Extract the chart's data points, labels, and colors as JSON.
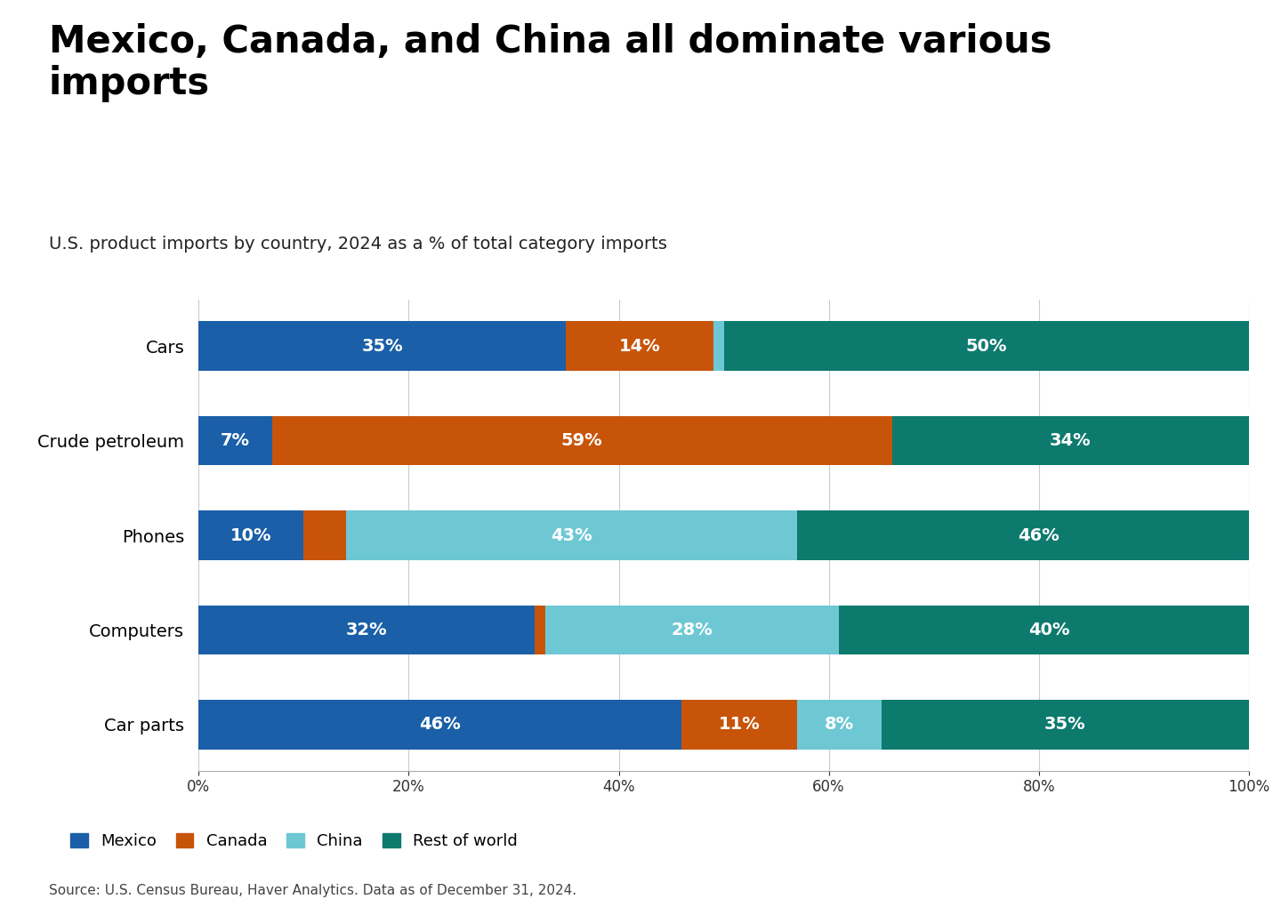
{
  "title": "Mexico, Canada, and China all dominate various\nimports",
  "subtitle": "U.S. product imports by country, 2024 as a % of total category imports",
  "source": "Source: U.S. Census Bureau, Haver Analytics. Data as of December 31, 2024.",
  "categories": [
    "Cars",
    "Crude petroleum",
    "Phones",
    "Computers",
    "Car parts"
  ],
  "series": {
    "Mexico": [
      35,
      7,
      10,
      32,
      46
    ],
    "Canada": [
      14,
      59,
      4,
      1,
      11
    ],
    "China": [
      1,
      0,
      43,
      28,
      8
    ],
    "Rest of world": [
      50,
      34,
      46,
      40,
      35
    ]
  },
  "labels": {
    "Mexico": [
      "35%",
      "7%",
      "10%",
      "32%",
      "46%"
    ],
    "Canada": [
      "14%",
      "59%",
      "",
      "",
      "11%"
    ],
    "China": [
      "",
      "",
      "43%",
      "28%",
      "8%"
    ],
    "Rest of world": [
      "50%",
      "34%",
      "46%",
      "40%",
      "35%"
    ]
  },
  "colors": {
    "Mexico": "#1a5fa8",
    "Canada": "#c8540a",
    "China": "#6dc8d4",
    "Rest of world": "#0d7a6e"
  },
  "legend_order": [
    "Mexico",
    "Canada",
    "China",
    "Rest of world"
  ],
  "background_color": "#ffffff",
  "title_fontsize": 30,
  "subtitle_fontsize": 14,
  "label_fontsize": 14,
  "ytick_fontsize": 14,
  "xtick_fontsize": 12,
  "source_fontsize": 11
}
